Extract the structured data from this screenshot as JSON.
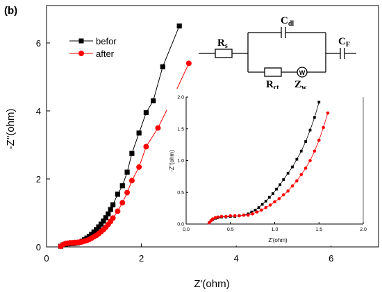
{
  "panel_label": "(b)",
  "circuit": {
    "rs": {
      "main": "R",
      "sub": "s"
    },
    "cdl": {
      "main": "C",
      "sub": "dl"
    },
    "rct": {
      "main": "R",
      "sub": "ct"
    },
    "zw": {
      "main": "Z",
      "sub": "w"
    },
    "cf": {
      "main": "C",
      "sub": "F"
    },
    "warburg_symbol": "W"
  },
  "chart_data": [
    {
      "type": "scatter",
      "xlabel": "Z'(ohm)",
      "ylabel": "-Z''(ohm)",
      "xlim": [
        0,
        7
      ],
      "ylim": [
        0,
        7.1
      ],
      "xticks": [
        0,
        2,
        4,
        6
      ],
      "yticks": [
        0,
        2,
        4,
        6
      ],
      "legend_position": "top-left",
      "grid": false,
      "series": [
        {
          "name": "befor",
          "color": "#000000",
          "marker": "square",
          "x": [
            0.3,
            0.35,
            0.4,
            0.45,
            0.5,
            0.55,
            0.6,
            0.65,
            0.7,
            0.75,
            0.8,
            0.85,
            0.9,
            0.95,
            1.0,
            1.05,
            1.1,
            1.15,
            1.2,
            1.25,
            1.3,
            1.35,
            1.4,
            1.5,
            1.6,
            1.7,
            1.8,
            1.95,
            2.1,
            2.25,
            2.45,
            2.8
          ],
          "y": [
            0.02,
            0.06,
            0.08,
            0.09,
            0.1,
            0.1,
            0.11,
            0.12,
            0.14,
            0.17,
            0.21,
            0.26,
            0.31,
            0.37,
            0.44,
            0.51,
            0.59,
            0.67,
            0.76,
            0.86,
            0.97,
            1.1,
            1.24,
            1.55,
            1.8,
            2.2,
            2.75,
            3.35,
            3.95,
            4.3,
            5.3,
            6.5
          ]
        },
        {
          "name": "after",
          "color": "#ff0000",
          "marker": "circle",
          "x": [
            0.3,
            0.35,
            0.4,
            0.45,
            0.5,
            0.55,
            0.6,
            0.65,
            0.7,
            0.75,
            0.8,
            0.85,
            0.9,
            0.95,
            1.0,
            1.05,
            1.1,
            1.15,
            1.2,
            1.25,
            1.3,
            1.35,
            1.4,
            1.5,
            1.6,
            1.7,
            1.8,
            1.95,
            2.1,
            2.35,
            2.7,
            3.0
          ],
          "y": [
            0.02,
            0.07,
            0.1,
            0.11,
            0.12,
            0.12,
            0.13,
            0.13,
            0.14,
            0.15,
            0.17,
            0.19,
            0.22,
            0.26,
            0.3,
            0.34,
            0.39,
            0.45,
            0.51,
            0.58,
            0.66,
            0.75,
            0.85,
            1.05,
            1.3,
            1.6,
            1.95,
            2.35,
            2.95,
            3.5,
            4.5,
            5.4
          ]
        }
      ]
    },
    {
      "type": "scatter",
      "xlabel": "Z'(ohm)",
      "ylabel": "-Z''(ohm)",
      "xlim": [
        0,
        2.0
      ],
      "ylim": [
        0,
        2.0
      ],
      "xticks": [
        "0.0",
        "0.5",
        "1.0",
        "1.5",
        "2.0"
      ],
      "yticks": [
        "0.0",
        "0.5",
        "1.0",
        "1.5",
        "2.0"
      ],
      "grid": false,
      "series": [
        {
          "color": "#000000",
          "marker": "square",
          "x": [
            0.26,
            0.28,
            0.3,
            0.33,
            0.36,
            0.4,
            0.45,
            0.5,
            0.55,
            0.6,
            0.65,
            0.7,
            0.74,
            0.78,
            0.82,
            0.86,
            0.9,
            0.94,
            0.98,
            1.02,
            1.06,
            1.1,
            1.15,
            1.2,
            1.25,
            1.3,
            1.35,
            1.4,
            1.45,
            1.5
          ],
          "y": [
            0.02,
            0.05,
            0.07,
            0.09,
            0.1,
            0.11,
            0.11,
            0.12,
            0.12,
            0.13,
            0.14,
            0.16,
            0.19,
            0.22,
            0.26,
            0.31,
            0.36,
            0.42,
            0.48,
            0.55,
            0.62,
            0.7,
            0.8,
            0.9,
            1.02,
            1.15,
            1.3,
            1.48,
            1.68,
            1.92
          ]
        },
        {
          "color": "#ff0000",
          "marker": "circle",
          "x": [
            0.26,
            0.28,
            0.3,
            0.33,
            0.36,
            0.4,
            0.45,
            0.5,
            0.55,
            0.6,
            0.65,
            0.7,
            0.75,
            0.8,
            0.85,
            0.9,
            0.95,
            1.0,
            1.05,
            1.1,
            1.15,
            1.2,
            1.25,
            1.3,
            1.35,
            1.4,
            1.45,
            1.5,
            1.55,
            1.6
          ],
          "y": [
            0.02,
            0.05,
            0.08,
            0.1,
            0.11,
            0.12,
            0.12,
            0.13,
            0.13,
            0.13,
            0.14,
            0.14,
            0.16,
            0.19,
            0.22,
            0.26,
            0.3,
            0.35,
            0.4,
            0.46,
            0.52,
            0.6,
            0.68,
            0.78,
            0.88,
            1.0,
            1.15,
            1.32,
            1.52,
            1.75
          ]
        }
      ]
    }
  ]
}
